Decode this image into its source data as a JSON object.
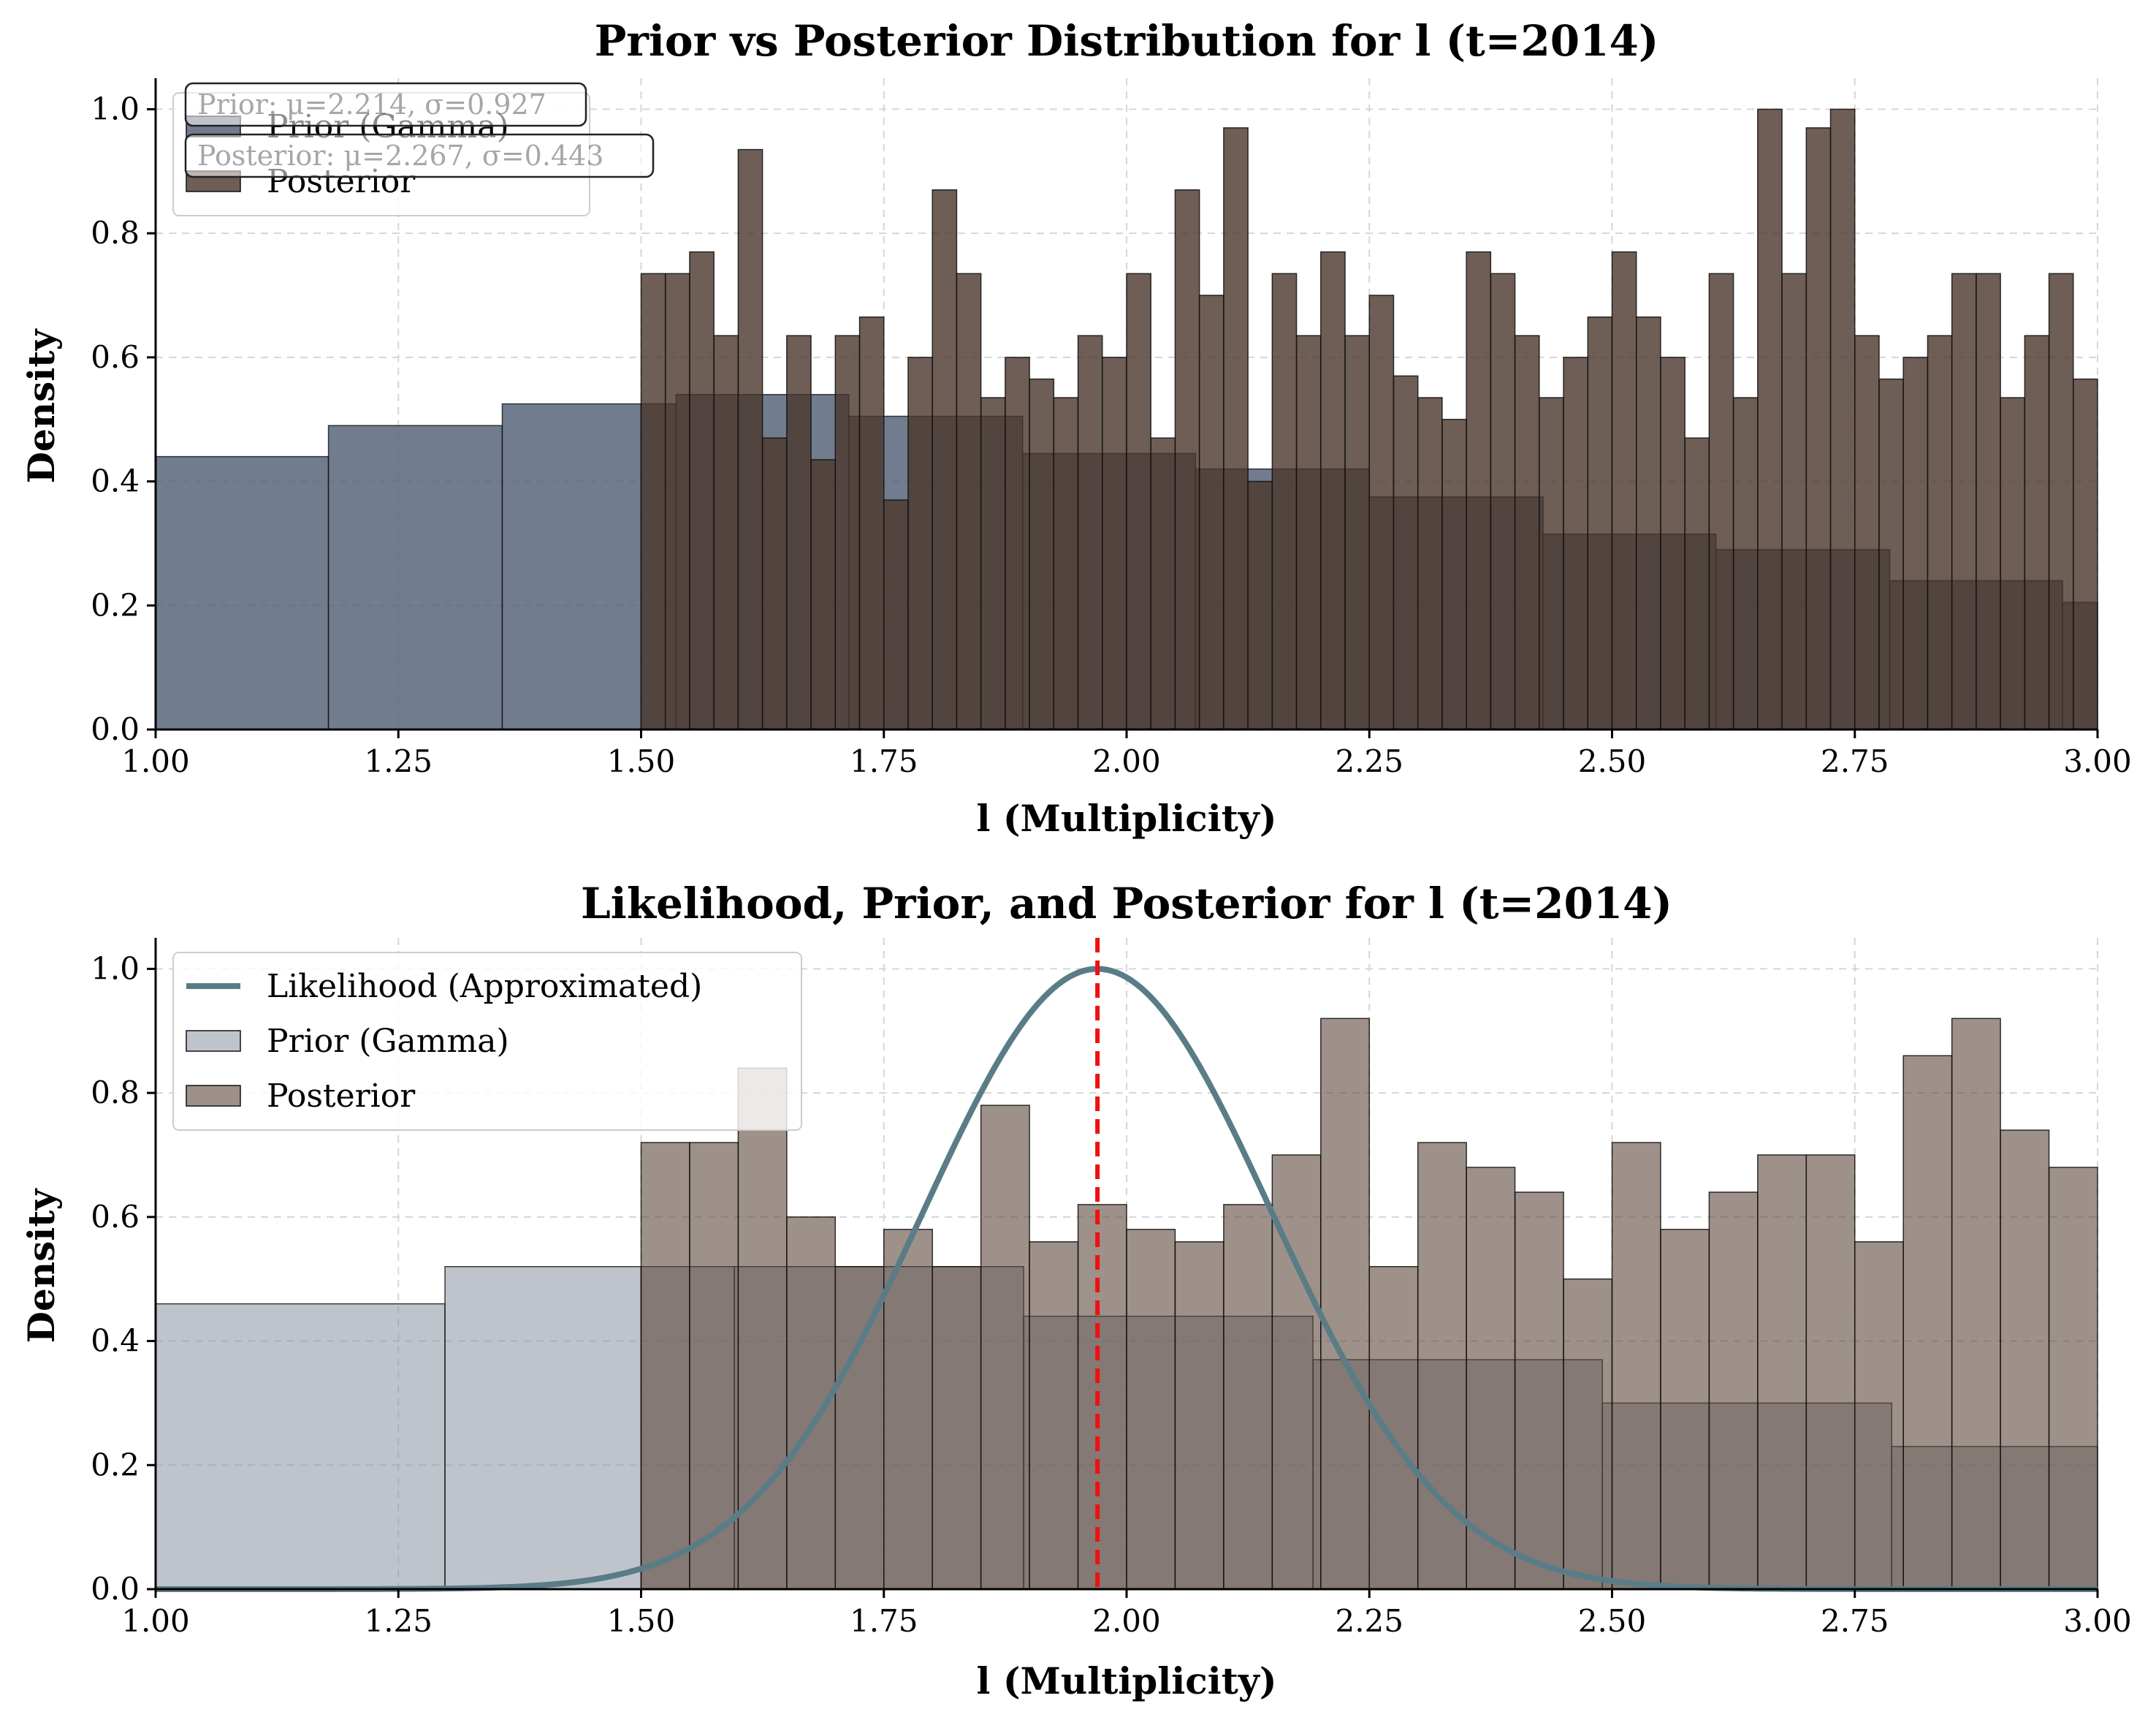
{
  "chart_data": [
    {
      "type": "bar",
      "title": "Prior vs Posterior Distribution for l (t=2014)",
      "xlabel": "l (Multiplicity)",
      "ylabel": "Density",
      "xlim": [
        1.0,
        3.0
      ],
      "ylim": [
        0.0,
        1.05
      ],
      "xticks": [
        "1.00",
        "1.25",
        "1.50",
        "1.75",
        "2.00",
        "2.25",
        "2.50",
        "2.75",
        "3.00"
      ],
      "yticks": [
        "0.0",
        "0.2",
        "0.4",
        "0.6",
        "0.8",
        "1.0"
      ],
      "grid": true,
      "legend_placement": "upper-left",
      "annotations": [
        "Prior: μ=2.214, σ=0.927",
        "Posterior: μ=2.267, σ=0.443"
      ],
      "series": [
        {
          "name": "Prior (Gamma)",
          "color": "#4f5b73",
          "bin_edges": [
            1.0,
            1.178,
            1.357,
            1.5,
            1.536,
            1.714,
            1.893,
            2.071,
            2.25,
            2.429,
            2.607,
            2.786,
            2.964,
            3.0
          ],
          "values": [
            0.44,
            0.49,
            0.525,
            0.525,
            0.54,
            0.505,
            0.445,
            0.42,
            0.375,
            0.315,
            0.29,
            0.24,
            0.205
          ]
        },
        {
          "name": "Posterior",
          "color": "#4a362b",
          "bin_start": 1.5,
          "bin_width": 0.025,
          "values": [
            0.735,
            0.735,
            0.77,
            0.635,
            0.935,
            0.47,
            0.635,
            0.435,
            0.635,
            0.665,
            0.37,
            0.6,
            0.87,
            0.735,
            0.535,
            0.6,
            0.565,
            0.535,
            0.635,
            0.6,
            0.735,
            0.47,
            0.87,
            0.7,
            0.97,
            0.4,
            0.735,
            0.635,
            0.77,
            0.635,
            0.7,
            0.57,
            0.535,
            0.5,
            0.77,
            0.735,
            0.635,
            0.535,
            0.6,
            0.665,
            0.77,
            0.665,
            0.6,
            0.47,
            0.735,
            0.535,
            1.0,
            0.735,
            0.97,
            1.0,
            0.635,
            0.565,
            0.6,
            0.635,
            0.735,
            0.735,
            0.535,
            0.635,
            0.735,
            0.565
          ]
        }
      ]
    },
    {
      "type": "bar",
      "title": "Likelihood, Prior, and Posterior for l (t=2014)",
      "xlabel": "l (Multiplicity)",
      "ylabel": "Density",
      "xlim": [
        1.0,
        3.0
      ],
      "ylim": [
        0.0,
        1.05
      ],
      "xticks": [
        "1.00",
        "1.25",
        "1.50",
        "1.75",
        "2.00",
        "2.25",
        "2.50",
        "2.75",
        "3.00"
      ],
      "yticks": [
        "0.0",
        "0.2",
        "0.4",
        "0.6",
        "0.8",
        "1.0"
      ],
      "grid": true,
      "legend_placement": "upper-left",
      "vline_x": 1.97,
      "vline_color": "#ee1111",
      "likelihood": {
        "name": "Likelihood (Approximated)",
        "color": "#5a7c87",
        "mean": 1.97,
        "sd": 0.18,
        "peak": 1.0
      },
      "series": [
        {
          "name": "Prior (Gamma)",
          "color": "#8a93a3",
          "bin_edges": [
            1.0,
            1.298,
            1.5,
            1.596,
            1.894,
            2.192,
            2.49,
            2.788,
            3.0
          ],
          "values": [
            0.46,
            0.52,
            0.52,
            0.52,
            0.44,
            0.37,
            0.3,
            0.23
          ]
        },
        {
          "name": "Posterior",
          "color": "#5e473b",
          "bin_start": 1.5,
          "bin_width": 0.05,
          "values": [
            0.72,
            0.72,
            0.84,
            0.6,
            0.52,
            0.58,
            0.52,
            0.78,
            0.56,
            0.62,
            0.58,
            0.56,
            0.62,
            0.7,
            0.92,
            0.52,
            0.72,
            0.68,
            0.64,
            0.5,
            0.72,
            0.58,
            0.64,
            0.7,
            0.7,
            0.56,
            0.86,
            0.92,
            0.74,
            0.68
          ]
        }
      ]
    }
  ]
}
